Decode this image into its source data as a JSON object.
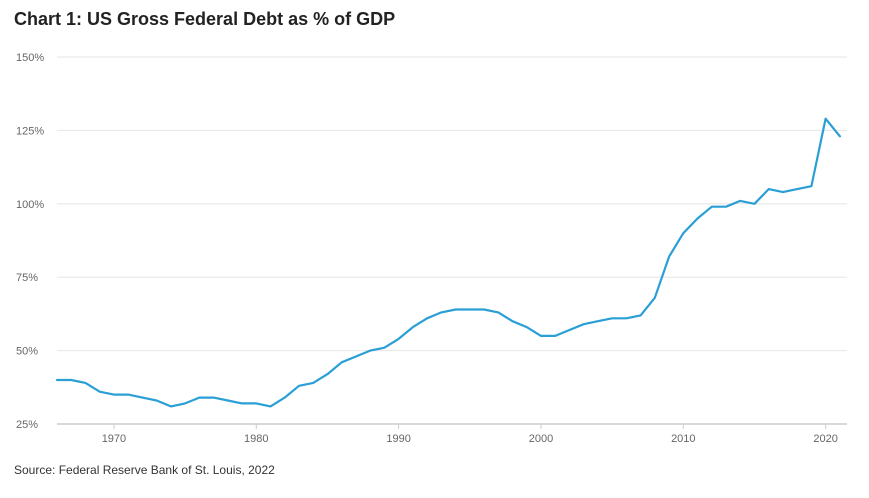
{
  "title": "Chart 1: US Gross Federal Debt as % of GDP",
  "source": "Source: Federal Reserve Bank of St. Louis, 2022",
  "colors": {
    "line": "#2a9fd6",
    "grid": "#e6e6e6",
    "axis": "#cccccc"
  },
  "chart_data": {
    "type": "line",
    "title": "Chart 1: US Gross Federal Debt as % of GDP",
    "xlabel": "",
    "ylabel": "",
    "xlim": [
      1966,
      2021.5
    ],
    "ylim": [
      25,
      150
    ],
    "grid": true,
    "x_ticks": [
      1970,
      1980,
      1990,
      2000,
      2010,
      2020
    ],
    "y_ticks": [
      25,
      50,
      75,
      100,
      125,
      150
    ],
    "y_tick_labels": [
      "25%",
      "50%",
      "75%",
      "100%",
      "125%",
      "150%"
    ],
    "series": [
      {
        "x": [
          1966,
          1967,
          1968,
          1969,
          1970,
          1971,
          1972,
          1973,
          1974,
          1975,
          1976,
          1977,
          1978,
          1979,
          1980,
          1981,
          1982,
          1983,
          1984,
          1985,
          1986,
          1987,
          1988,
          1989,
          1990,
          1991,
          1992,
          1993,
          1994,
          1995,
          1996,
          1997,
          1998,
          1999,
          2000,
          2001,
          2002,
          2003,
          2004,
          2005,
          2006,
          2007,
          2008,
          2009,
          2010,
          2011,
          2012,
          2013,
          2014,
          2015,
          2016,
          2017,
          2018,
          2019,
          2020,
          2021
        ],
        "values": [
          40,
          40,
          39,
          36,
          35,
          35,
          34,
          33,
          31,
          32,
          34,
          34,
          33,
          32,
          32,
          31,
          34,
          38,
          39,
          42,
          46,
          48,
          50,
          51,
          54,
          58,
          61,
          63,
          64,
          64,
          64,
          63,
          60,
          58,
          55,
          55,
          57,
          59,
          60,
          61,
          61,
          62,
          68,
          82,
          90,
          95,
          99,
          99,
          101,
          100,
          105,
          104,
          105,
          106,
          129,
          123
        ]
      }
    ]
  }
}
